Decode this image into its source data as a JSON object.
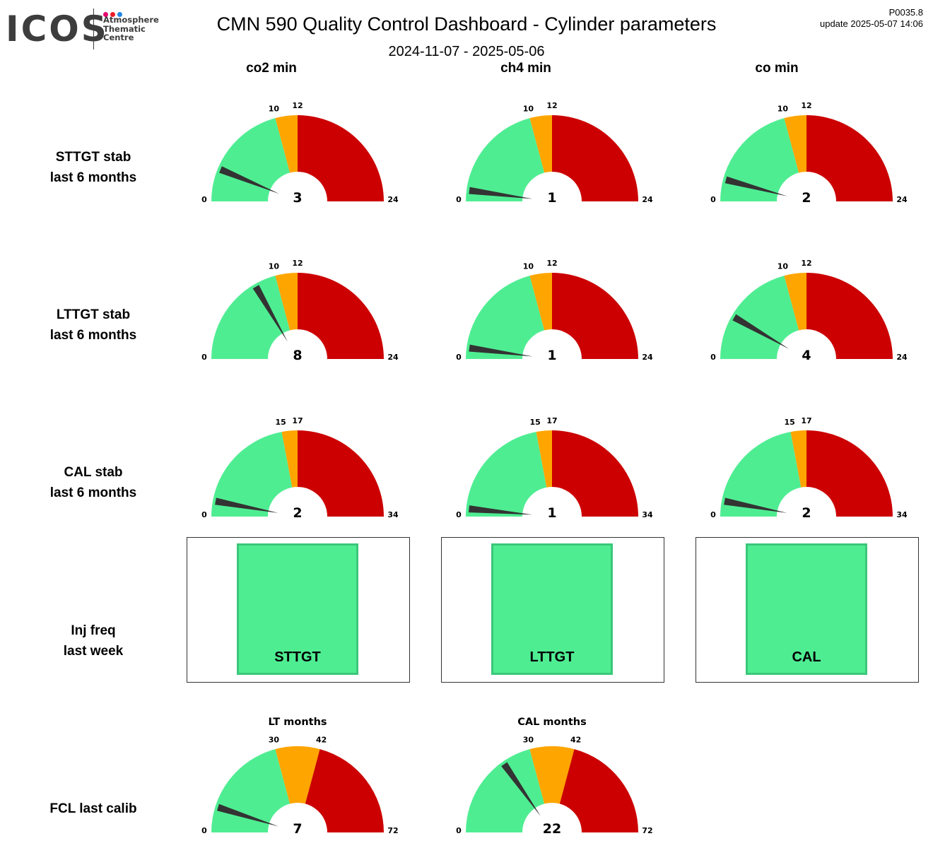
{
  "header": {
    "logo_word": "ICOS",
    "logo_lines": [
      "Atmosphere",
      "Thematic",
      "Centre"
    ],
    "logo_dot_colors": [
      "#E5006E",
      "#ED1C24",
      "#1E88E5"
    ],
    "title": "CMN 590 Quality Control Dashboard - Cylinder parameters",
    "date_range": "2024-11-07 - 2025-05-06",
    "version": "P0035.8",
    "update": "update  2025-05-07 14:06"
  },
  "columns": [
    "co2 min",
    "ch4 min",
    "co min"
  ],
  "rows": [
    {
      "lines": [
        "STTGT stab",
        "last 6 months"
      ]
    },
    {
      "lines": [
        "LTTGT stab",
        "last 6 months"
      ]
    },
    {
      "lines": [
        "CAL stab",
        "last 6 months"
      ]
    },
    {
      "lines": [
        "Inj freq",
        "last week"
      ]
    },
    {
      "lines": [
        "FCL last calib"
      ]
    }
  ],
  "colors": {
    "good": "#4FED92",
    "warn": "#FFA500",
    "bad": "#CC0000",
    "needle": "#333333"
  },
  "chart_data": [
    {
      "type": "gauge",
      "row": "STTGT stab last 6 months",
      "column": "co2 min",
      "value": 3,
      "min": 0,
      "max": 24,
      "thresholds": [
        10,
        12
      ]
    },
    {
      "type": "gauge",
      "row": "STTGT stab last 6 months",
      "column": "ch4 min",
      "value": 1,
      "min": 0,
      "max": 24,
      "thresholds": [
        10,
        12
      ]
    },
    {
      "type": "gauge",
      "row": "STTGT stab last 6 months",
      "column": "co min",
      "value": 2,
      "min": 0,
      "max": 24,
      "thresholds": [
        10,
        12
      ]
    },
    {
      "type": "gauge",
      "row": "LTTGT stab last 6 months",
      "column": "co2 min",
      "value": 8,
      "min": 0,
      "max": 24,
      "thresholds": [
        10,
        12
      ]
    },
    {
      "type": "gauge",
      "row": "LTTGT stab last 6 months",
      "column": "ch4 min",
      "value": 1,
      "min": 0,
      "max": 24,
      "thresholds": [
        10,
        12
      ]
    },
    {
      "type": "gauge",
      "row": "LTTGT stab last 6 months",
      "column": "co min",
      "value": 4,
      "min": 0,
      "max": 24,
      "thresholds": [
        10,
        12
      ]
    },
    {
      "type": "gauge",
      "row": "CAL stab last 6 months",
      "column": "co2 min",
      "value": 2,
      "min": 0,
      "max": 34,
      "thresholds": [
        15,
        17
      ]
    },
    {
      "type": "gauge",
      "row": "CAL stab last 6 months",
      "column": "ch4 min",
      "value": 1,
      "min": 0,
      "max": 34,
      "thresholds": [
        15,
        17
      ]
    },
    {
      "type": "gauge",
      "row": "CAL stab last 6 months",
      "column": "co min",
      "value": 2,
      "min": 0,
      "max": 34,
      "thresholds": [
        15,
        17
      ]
    },
    {
      "type": "gauge",
      "row": "FCL last calib",
      "title": "LT months",
      "value": 7,
      "min": 0,
      "max": 72,
      "thresholds": [
        30,
        42
      ]
    },
    {
      "type": "gauge",
      "row": "FCL last calib",
      "title": "CAL months",
      "value": 22,
      "min": 0,
      "max": 72,
      "thresholds": [
        30,
        42
      ]
    }
  ],
  "inj_freq": [
    {
      "label": "STTGT",
      "status": "good"
    },
    {
      "label": "LTTGT",
      "status": "good"
    },
    {
      "label": "CAL",
      "status": "good"
    }
  ]
}
